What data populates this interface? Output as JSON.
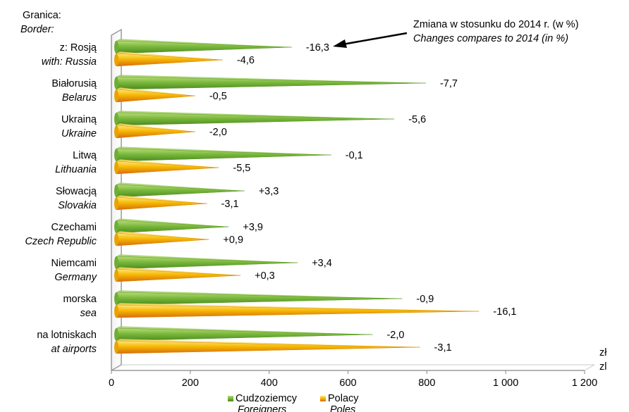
{
  "chart_data": {
    "type": "bar",
    "orientation": "horizontal",
    "corner_label": {
      "pl": "Granica:",
      "en": "Border:"
    },
    "categories": [
      {
        "pl": "z: Rosją",
        "en": "with: Russia"
      },
      {
        "pl": "Białorusią",
        "en": "Belarus"
      },
      {
        "pl": "Ukrainą",
        "en": "Ukraine"
      },
      {
        "pl": "Litwą",
        "en": "Lithuania"
      },
      {
        "pl": "Słowacją",
        "en": "Slovakia"
      },
      {
        "pl": "Czechami",
        "en": "Czech Republic"
      },
      {
        "pl": "Niemcami",
        "en": "Germany"
      },
      {
        "pl": "morska",
        "en": "sea"
      },
      {
        "pl": "na lotniskach",
        "en": "at airports"
      }
    ],
    "series": [
      {
        "name": {
          "pl": "Cudzoziemcy",
          "en": "Foreigners"
        },
        "color": "#6aa532",
        "values": [
          445,
          785,
          705,
          545,
          325,
          285,
          460,
          725,
          650
        ],
        "change_labels": [
          "-16,3",
          "-7,7",
          "-5,6",
          "-0,1",
          "+3,3",
          "+3,9",
          "+3,4",
          "-0,9",
          "-2,0"
        ]
      },
      {
        "name": {
          "pl": "Polacy",
          "en": "Poles"
        },
        "color": "#f0b400",
        "values": [
          270,
          200,
          200,
          260,
          230,
          235,
          315,
          920,
          770
        ],
        "change_labels": [
          "-4,6",
          "-0,5",
          "-2,0",
          "-5,5",
          "-3,1",
          "+0,9",
          "+0,3",
          "-16,1",
          "-3,1"
        ]
      }
    ],
    "x_axis": {
      "range": [
        0,
        1200
      ],
      "ticks": [
        "0",
        "200",
        "400",
        "600",
        "800",
        "1 000",
        "1 200"
      ],
      "unit_pl": "zł",
      "unit_en": "zl"
    },
    "annotation": {
      "pl": "Zmiana w stosunku do 2014 r. (w %)",
      "en": "Changes compares to 2014 (in %)"
    },
    "legend_position": "bottom-center",
    "grid": false
  }
}
